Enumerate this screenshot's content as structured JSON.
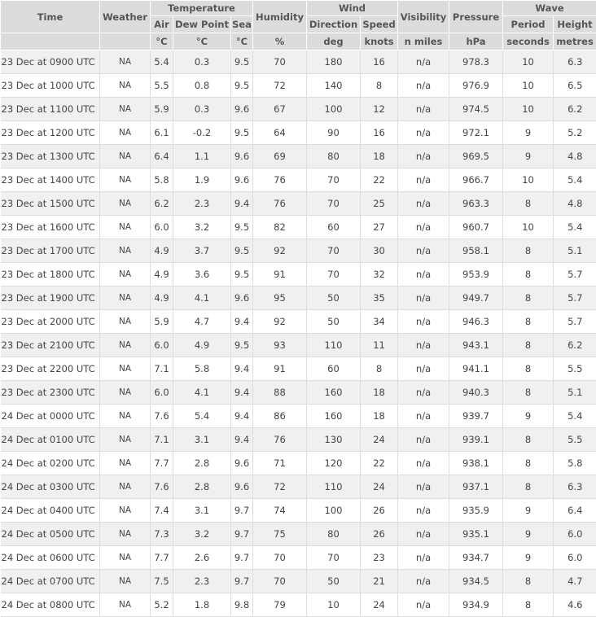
{
  "header": {
    "row1": [
      "Time",
      "Weather",
      "Temperature",
      "Humidity",
      "Wind",
      "Visibility",
      "Pressure",
      "Wave"
    ],
    "row2": [
      "Air",
      "Dew Point",
      "Sea",
      "Direction",
      "Speed",
      "Period",
      "Height"
    ],
    "units": [
      "°C",
      "°C",
      "°C",
      "%",
      "deg",
      "knots",
      "n miles",
      "hPa",
      "seconds",
      "metres"
    ]
  },
  "rows": [
    [
      "23 Dec at 0900 UTC",
      "NA",
      "5.4",
      "0.3",
      "9.5",
      "70",
      "180",
      "16",
      "n/a",
      "978.3",
      "10",
      "6.3"
    ],
    [
      "23 Dec at 1000 UTC",
      "NA",
      "5.5",
      "0.8",
      "9.5",
      "72",
      "140",
      "8",
      "n/a",
      "976.9",
      "10",
      "6.5"
    ],
    [
      "23 Dec at 1100 UTC",
      "NA",
      "5.9",
      "0.3",
      "9.6",
      "67",
      "100",
      "12",
      "n/a",
      "974.5",
      "10",
      "6.2"
    ],
    [
      "23 Dec at 1200 UTC",
      "NA",
      "6.1",
      "-0.2",
      "9.5",
      "64",
      "90",
      "16",
      "n/a",
      "972.1",
      "9",
      "5.2"
    ],
    [
      "23 Dec at 1300 UTC",
      "NA",
      "6.4",
      "1.1",
      "9.6",
      "69",
      "80",
      "18",
      "n/a",
      "969.5",
      "9",
      "4.8"
    ],
    [
      "23 Dec at 1400 UTC",
      "NA",
      "5.8",
      "1.9",
      "9.6",
      "76",
      "70",
      "22",
      "n/a",
      "966.7",
      "10",
      "5.4"
    ],
    [
      "23 Dec at 1500 UTC",
      "NA",
      "6.2",
      "2.3",
      "9.4",
      "76",
      "70",
      "25",
      "n/a",
      "963.3",
      "8",
      "4.8"
    ],
    [
      "23 Dec at 1600 UTC",
      "NA",
      "6.0",
      "3.2",
      "9.5",
      "82",
      "60",
      "27",
      "n/a",
      "960.7",
      "10",
      "5.4"
    ],
    [
      "23 Dec at 1700 UTC",
      "NA",
      "4.9",
      "3.7",
      "9.5",
      "92",
      "70",
      "30",
      "n/a",
      "958.1",
      "8",
      "5.1"
    ],
    [
      "23 Dec at 1800 UTC",
      "NA",
      "4.9",
      "3.6",
      "9.5",
      "91",
      "70",
      "32",
      "n/a",
      "953.9",
      "8",
      "5.7"
    ],
    [
      "23 Dec at 1900 UTC",
      "NA",
      "4.9",
      "4.1",
      "9.6",
      "95",
      "50",
      "35",
      "n/a",
      "949.7",
      "8",
      "5.7"
    ],
    [
      "23 Dec at 2000 UTC",
      "NA",
      "5.9",
      "4.7",
      "9.4",
      "92",
      "50",
      "34",
      "n/a",
      "946.3",
      "8",
      "5.7"
    ],
    [
      "23 Dec at 2100 UTC",
      "NA",
      "6.0",
      "4.9",
      "9.5",
      "93",
      "110",
      "11",
      "n/a",
      "943.1",
      "8",
      "6.2"
    ],
    [
      "23 Dec at 2200 UTC",
      "NA",
      "7.1",
      "5.8",
      "9.4",
      "91",
      "60",
      "8",
      "n/a",
      "941.1",
      "8",
      "5.5"
    ],
    [
      "23 Dec at 2300 UTC",
      "NA",
      "6.0",
      "4.1",
      "9.4",
      "88",
      "160",
      "18",
      "n/a",
      "940.3",
      "8",
      "5.1"
    ],
    [
      "24 Dec at 0000 UTC",
      "NA",
      "7.6",
      "5.4",
      "9.4",
      "86",
      "160",
      "18",
      "n/a",
      "939.7",
      "9",
      "5.4"
    ],
    [
      "24 Dec at 0100 UTC",
      "NA",
      "7.1",
      "3.1",
      "9.4",
      "76",
      "130",
      "24",
      "n/a",
      "939.1",
      "8",
      "5.5"
    ],
    [
      "24 Dec at 0200 UTC",
      "NA",
      "7.7",
      "2.8",
      "9.6",
      "71",
      "120",
      "22",
      "n/a",
      "938.1",
      "8",
      "5.8"
    ],
    [
      "24 Dec at 0300 UTC",
      "NA",
      "7.6",
      "2.8",
      "9.6",
      "72",
      "110",
      "24",
      "n/a",
      "937.1",
      "8",
      "6.3"
    ],
    [
      "24 Dec at 0400 UTC",
      "NA",
      "7.4",
      "3.1",
      "9.7",
      "74",
      "100",
      "26",
      "n/a",
      "935.9",
      "9",
      "6.4"
    ],
    [
      "24 Dec at 0500 UTC",
      "NA",
      "7.3",
      "3.2",
      "9.7",
      "75",
      "80",
      "26",
      "n/a",
      "935.1",
      "9",
      "6.0"
    ],
    [
      "24 Dec at 0600 UTC",
      "NA",
      "7.7",
      "2.6",
      "9.7",
      "70",
      "70",
      "23",
      "n/a",
      "934.7",
      "9",
      "6.0"
    ],
    [
      "24 Dec at 0700 UTC",
      "NA",
      "7.5",
      "2.3",
      "9.7",
      "70",
      "50",
      "21",
      "n/a",
      "934.5",
      "8",
      "4.7"
    ],
    [
      "24 Dec at 0800 UTC",
      "NA",
      "5.2",
      "1.8",
      "9.8",
      "79",
      "10",
      "24",
      "n/a",
      "934.9",
      "8",
      "4.6"
    ]
  ]
}
